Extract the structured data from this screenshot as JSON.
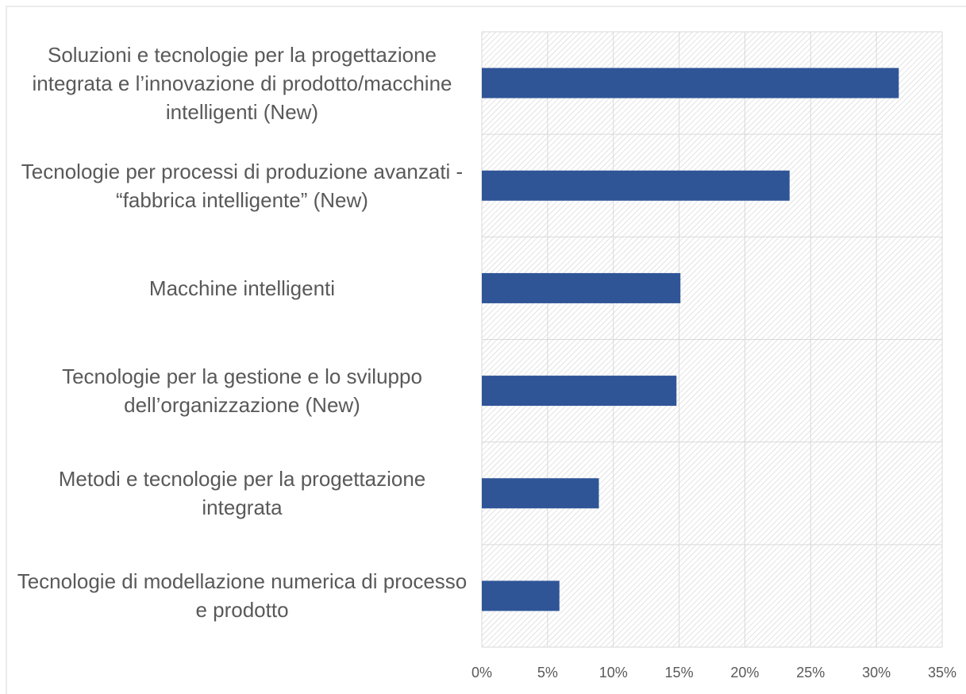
{
  "chart_data": {
    "type": "bar",
    "orientation": "horizontal",
    "categories": [
      "Soluzioni e tecnologie per la progettazione integrata e l’innovazione di prodotto/macchine intelligenti (New)",
      "Tecnologie per processi di produzione avanzati - “fabbrica intelligente” (New)",
      "Macchine intelligenti",
      "Tecnologie per la gestione e lo sviluppo dell’organizzazione (New)",
      "Metodi e tecnologie per la progettazione integrata",
      "Tecnologie di modellazione numerica di processo e prodotto"
    ],
    "values": [
      31.7,
      23.4,
      15.1,
      14.8,
      8.9,
      5.9
    ],
    "color": "#2f5597",
    "xlim": [
      0,
      35
    ],
    "xticks": [
      {
        "value": 0,
        "label": "0%"
      },
      {
        "value": 5,
        "label": "5%"
      },
      {
        "value": 10,
        "label": "10%"
      },
      {
        "value": 15,
        "label": "15%"
      },
      {
        "value": 20,
        "label": "20%"
      },
      {
        "value": 25,
        "label": "25%"
      },
      {
        "value": 30,
        "label": "30%"
      },
      {
        "value": 35,
        "label": "35%"
      }
    ],
    "grid": true
  }
}
